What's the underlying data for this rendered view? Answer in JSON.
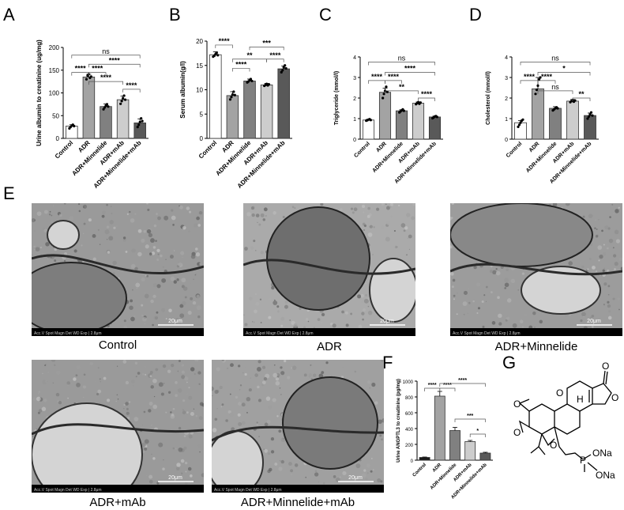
{
  "panels": {
    "A": "A",
    "B": "B",
    "C": "C",
    "D": "D",
    "E": "E",
    "F": "F",
    "G": "G"
  },
  "chart_data": [
    {
      "id": "A",
      "type": "bar",
      "ylabel": "Urine albumin to creatinine (ug/mg)",
      "categories": [
        "Control",
        "ADR",
        "ADR+Minnelide",
        "ADR+mAb",
        "ADR+Minnelide+mAb"
      ],
      "values": [
        27,
        135,
        70,
        85,
        34
      ],
      "errors": [
        3,
        6,
        6,
        8,
        9
      ],
      "bar_colors": [
        "#ffffff",
        "#a3a3a3",
        "#808080",
        "#cdcdcd",
        "#595959"
      ],
      "points": [
        [
          22,
          25,
          28,
          30,
          27
        ],
        [
          130,
          138,
          141,
          133,
          136
        ],
        [
          64,
          68,
          72,
          75,
          70
        ],
        [
          76,
          82,
          88,
          94,
          85
        ],
        [
          25,
          30,
          36,
          44,
          38
        ]
      ],
      "ylim": [
        0,
        200
      ],
      "yticks": [
        0,
        50,
        100,
        150,
        200
      ],
      "sig": [
        {
          "from": 0,
          "to": 4,
          "label": "ns",
          "y": 183
        },
        {
          "from": 1,
          "to": 4,
          "label": "****",
          "y": 163
        },
        {
          "from": 0,
          "to": 1,
          "label": "****",
          "y": 145
        },
        {
          "from": 1,
          "to": 2,
          "label": "****",
          "y": 145
        },
        {
          "from": 1,
          "to": 3,
          "label": "****",
          "y": 125
        },
        {
          "from": 3,
          "to": 4,
          "label": "****",
          "y": 108
        }
      ]
    },
    {
      "id": "B",
      "type": "bar",
      "ylabel": "Serum albumin(g/l)",
      "categories": [
        "Control",
        "ADR",
        "ADR+Minnelide",
        "ADR+mAb",
        "ADR+Minnelide+mAb"
      ],
      "values": [
        17.2,
        8.8,
        11.8,
        11.0,
        14.3
      ],
      "errors": [
        0.6,
        0.8,
        0.4,
        0.3,
        0.6
      ],
      "bar_colors": [
        "#ffffff",
        "#a3a3a3",
        "#808080",
        "#cdcdcd",
        "#595959"
      ],
      "points": [
        [
          16.8,
          17.0,
          17.3,
          17.6,
          17.1
        ],
        [
          8.0,
          8.5,
          9.0,
          9.6,
          8.9
        ],
        [
          11.5,
          11.7,
          12.0,
          12.2,
          11.8
        ],
        [
          10.8,
          11.0,
          11.2,
          10.9,
          11.1
        ],
        [
          13.6,
          14.0,
          14.6,
          15.0,
          14.4
        ]
      ],
      "ylim": [
        0,
        20
      ],
      "yticks": [
        0,
        5,
        10,
        15,
        20
      ],
      "sig": [
        {
          "from": 0,
          "to": 1,
          "label": "****",
          "y": 19.2
        },
        {
          "from": 1,
          "to": 2,
          "label": "****",
          "y": 14.4
        },
        {
          "from": 1,
          "to": 3,
          "label": "**",
          "y": 16.3
        },
        {
          "from": 2,
          "to": 4,
          "label": "***",
          "y": 18.8
        },
        {
          "from": 3,
          "to": 4,
          "label": "****",
          "y": 16.3
        }
      ]
    },
    {
      "id": "C",
      "type": "bar",
      "ylabel": "Triglyceride (mmol/l)",
      "categories": [
        "Control",
        "ADR",
        "ADR+Minnelide",
        "ADR+mAb",
        "ADR+Minnelide+mAb"
      ],
      "values": [
        0.93,
        2.28,
        1.38,
        1.75,
        1.08
      ],
      "errors": [
        0.04,
        0.2,
        0.05,
        0.06,
        0.04
      ],
      "bar_colors": [
        "#ffffff",
        "#a3a3a3",
        "#808080",
        "#cdcdcd",
        "#595959"
      ],
      "points": [
        [
          0.9,
          0.92,
          0.95,
          0.97,
          0.93
        ],
        [
          2.0,
          2.2,
          2.35,
          2.55,
          2.3
        ],
        [
          1.3,
          1.35,
          1.4,
          1.45,
          1.38
        ],
        [
          1.7,
          1.75,
          1.8,
          1.72,
          1.78
        ],
        [
          1.02,
          1.06,
          1.1,
          1.12,
          1.08
        ]
      ],
      "ylim": [
        0,
        4
      ],
      "yticks": [
        0,
        1,
        2,
        3,
        4
      ],
      "sig": [
        {
          "from": 0,
          "to": 4,
          "label": "ns",
          "y": 3.75
        },
        {
          "from": 1,
          "to": 4,
          "label": "****",
          "y": 3.25
        },
        {
          "from": 0,
          "to": 1,
          "label": "****",
          "y": 2.85
        },
        {
          "from": 1,
          "to": 2,
          "label": "****",
          "y": 2.85
        },
        {
          "from": 1,
          "to": 3,
          "label": "**",
          "y": 2.35
        },
        {
          "from": 3,
          "to": 4,
          "label": "****",
          "y": 2.0
        }
      ]
    },
    {
      "id": "D",
      "type": "bar",
      "ylabel": "Cholesterol (mmol/l)",
      "categories": [
        "Control",
        "ADR",
        "ADR+Minnelide",
        "ADR+mAb",
        "ADR+Minnelide+mAb"
      ],
      "values": [
        0.8,
        2.45,
        1.5,
        1.85,
        1.15
      ],
      "errors": [
        0.1,
        0.55,
        0.08,
        0.08,
        0.12
      ],
      "bar_colors": [
        "#ffffff",
        "#a3a3a3",
        "#808080",
        "#cdcdcd",
        "#595959"
      ],
      "points": [
        [
          0.6,
          0.7,
          0.8,
          0.9,
          0.95
        ],
        [
          2.2,
          2.4,
          2.6,
          2.9,
          3.0
        ],
        [
          1.4,
          1.45,
          1.5,
          1.55,
          1.5
        ],
        [
          1.8,
          1.85,
          1.9,
          1.82,
          1.88
        ],
        [
          1.0,
          1.1,
          1.2,
          1.3,
          1.15
        ]
      ],
      "ylim": [
        0,
        4
      ],
      "yticks": [
        0,
        1,
        2,
        3,
        4
      ],
      "sig": [
        {
          "from": 0,
          "to": 4,
          "label": "ns",
          "y": 3.75
        },
        {
          "from": 1,
          "to": 4,
          "label": "*",
          "y": 3.25
        },
        {
          "from": 0,
          "to": 1,
          "label": "****",
          "y": 2.85
        },
        {
          "from": 1,
          "to": 2,
          "label": "****",
          "y": 2.85
        },
        {
          "from": 1,
          "to": 3,
          "label": "ns",
          "y": 2.35
        },
        {
          "from": 3,
          "to": 4,
          "label": "**",
          "y": 2.0
        }
      ]
    },
    {
      "id": "F",
      "type": "bar",
      "ylabel": "Urine ANGPTL3 to creatinine (pg/mg)",
      "categories": [
        "Control",
        "ADR",
        "ADR+Minnelide",
        "ADR+mAb",
        "ADR+Minnelide+mAb"
      ],
      "values": [
        35,
        810,
        375,
        235,
        90
      ],
      "errors": [
        5,
        60,
        40,
        15,
        10
      ],
      "bar_colors": [
        "#1a1a1a",
        "#a3a3a3",
        "#808080",
        "#cdcdcd",
        "#595959"
      ],
      "points": [],
      "ylim": [
        0,
        1000
      ],
      "yticks": [
        0,
        200,
        400,
        600,
        800,
        1000
      ],
      "sig": [
        {
          "from": 0,
          "to": 1,
          "label": "****",
          "y": 910
        },
        {
          "from": 1,
          "to": 2,
          "label": "****",
          "y": 910
        },
        {
          "from": 1,
          "to": 4,
          "label": "****",
          "y": 970
        },
        {
          "from": 2,
          "to": 4,
          "label": "***",
          "y": 520
        },
        {
          "from": 3,
          "to": 4,
          "label": "*",
          "y": 330
        }
      ]
    }
  ],
  "micrographs": [
    {
      "id": "control",
      "caption": "Control",
      "scale": "20μm",
      "footer": "Acc.V  Spot Magn  Det  WD  Exp  |  2.8μm"
    },
    {
      "id": "adr",
      "caption": "ADR",
      "scale": "20μm",
      "footer": "Acc.V  Spot Magn  Det  WD  Exp  |  2.8μm"
    },
    {
      "id": "adr-minnelide",
      "caption": "ADR+Minnelide",
      "scale": "20μm",
      "footer": "Acc.V  Spot Magn  Det  WD  Exp  |  2.8μm"
    },
    {
      "id": "adr-mab",
      "caption": "ADR+mAb",
      "scale": "20μm",
      "footer": "Acc.V  Spot Magn  Det  WD  Exp  |  2.8μm"
    },
    {
      "id": "adr-minnelide-mab",
      "caption": "ADR+Minnelide+mAb",
      "scale": "20μm",
      "footer": "Acc.V  Spot Magn  Det  WD  Exp  |  2.8μm"
    }
  ],
  "structure": {
    "labels": {
      "o1": "O",
      "o2": "O",
      "o3": "O",
      "o4": "O",
      "o5": "O",
      "o_carbonyl": "O",
      "h": "H",
      "p": "P",
      "ona1": "ONa",
      "ona2": "ONa"
    }
  }
}
